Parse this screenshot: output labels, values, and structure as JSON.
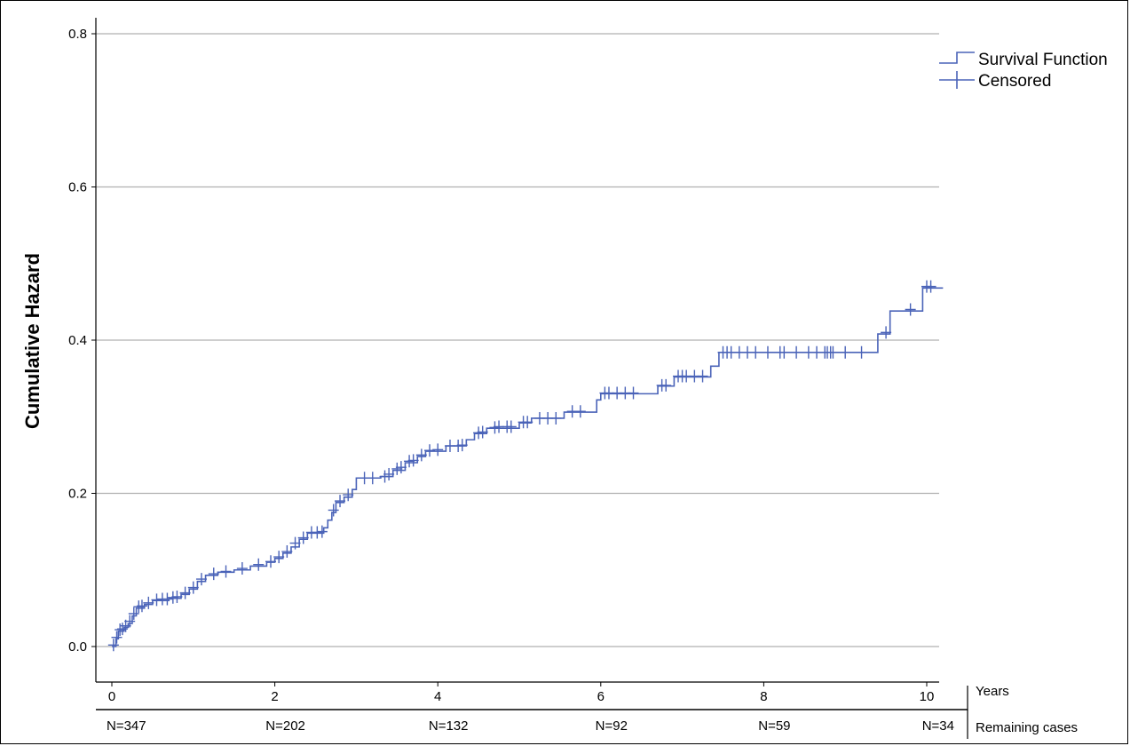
{
  "chart_data": {
    "type": "line",
    "title": "",
    "xlabel": "",
    "ylabel": "Cumulative Hazard",
    "xlim": [
      0,
      10.2
    ],
    "ylim": [
      -0.07,
      0.82
    ],
    "x_ticks": [
      0,
      2,
      4,
      6,
      8,
      10
    ],
    "y_ticks": [
      0.0,
      0.2,
      0.4,
      0.6,
      0.8
    ],
    "y_tick_labels": [
      "0.0",
      "0.2",
      "0.4",
      "0.6",
      "0.8"
    ],
    "x_tick_labels": [
      "0",
      "2",
      "4",
      "6",
      "8",
      "10"
    ],
    "grid": "horizontal",
    "legend_position": "top-right",
    "colors": {
      "line": "#4a63b8"
    },
    "legend": {
      "survival_label": "Survival Function",
      "censored_label": "Censored"
    },
    "x_axis_side_label": "Years",
    "risk_table_label": "Remaining cases",
    "risk_table": [
      {
        "x": 0,
        "label": "N=347"
      },
      {
        "x": 2,
        "label": "N=202"
      },
      {
        "x": 4,
        "label": "N=132"
      },
      {
        "x": 6,
        "label": "N=92"
      },
      {
        "x": 8,
        "label": "N=59"
      },
      {
        "x": 10,
        "label": "N=34"
      }
    ],
    "series": [
      {
        "name": "Survival Function",
        "step_points": [
          [
            0.0,
            0.0
          ],
          [
            0.05,
            0.01
          ],
          [
            0.08,
            0.02
          ],
          [
            0.15,
            0.025
          ],
          [
            0.2,
            0.03
          ],
          [
            0.25,
            0.04
          ],
          [
            0.3,
            0.05
          ],
          [
            0.4,
            0.055
          ],
          [
            0.5,
            0.06
          ],
          [
            0.7,
            0.063
          ],
          [
            0.85,
            0.068
          ],
          [
            0.95,
            0.075
          ],
          [
            1.05,
            0.085
          ],
          [
            1.15,
            0.093
          ],
          [
            1.3,
            0.097
          ],
          [
            1.5,
            0.1
          ],
          [
            1.7,
            0.105
          ],
          [
            1.9,
            0.11
          ],
          [
            2.0,
            0.115
          ],
          [
            2.1,
            0.122
          ],
          [
            2.2,
            0.13
          ],
          [
            2.3,
            0.14
          ],
          [
            2.4,
            0.148
          ],
          [
            2.6,
            0.155
          ],
          [
            2.65,
            0.165
          ],
          [
            2.7,
            0.175
          ],
          [
            2.75,
            0.188
          ],
          [
            2.85,
            0.195
          ],
          [
            2.95,
            0.205
          ],
          [
            3.0,
            0.22
          ],
          [
            3.3,
            0.222
          ],
          [
            3.45,
            0.23
          ],
          [
            3.6,
            0.24
          ],
          [
            3.75,
            0.248
          ],
          [
            3.85,
            0.255
          ],
          [
            4.1,
            0.262
          ],
          [
            4.35,
            0.27
          ],
          [
            4.45,
            0.278
          ],
          [
            4.6,
            0.285
          ],
          [
            5.0,
            0.292
          ],
          [
            5.15,
            0.298
          ],
          [
            5.55,
            0.306
          ],
          [
            5.95,
            0.322
          ],
          [
            6.0,
            0.33
          ],
          [
            6.7,
            0.34
          ],
          [
            6.9,
            0.352
          ],
          [
            7.35,
            0.366
          ],
          [
            7.45,
            0.384
          ],
          [
            9.4,
            0.408
          ],
          [
            9.55,
            0.438
          ],
          [
            9.95,
            0.468
          ],
          [
            10.2,
            0.468
          ]
        ]
      },
      {
        "name": "Censored",
        "censor_points": [
          [
            0.02,
            0.002
          ],
          [
            0.06,
            0.012
          ],
          [
            0.1,
            0.022
          ],
          [
            0.13,
            0.023
          ],
          [
            0.17,
            0.027
          ],
          [
            0.22,
            0.033
          ],
          [
            0.27,
            0.043
          ],
          [
            0.33,
            0.052
          ],
          [
            0.37,
            0.053
          ],
          [
            0.45,
            0.057
          ],
          [
            0.55,
            0.061
          ],
          [
            0.62,
            0.062
          ],
          [
            0.68,
            0.062
          ],
          [
            0.75,
            0.064
          ],
          [
            0.8,
            0.065
          ],
          [
            0.9,
            0.07
          ],
          [
            1.0,
            0.077
          ],
          [
            1.1,
            0.088
          ],
          [
            1.25,
            0.095
          ],
          [
            1.4,
            0.098
          ],
          [
            1.6,
            0.102
          ],
          [
            1.8,
            0.107
          ],
          [
            1.95,
            0.111
          ],
          [
            2.05,
            0.117
          ],
          [
            2.15,
            0.124
          ],
          [
            2.25,
            0.135
          ],
          [
            2.35,
            0.142
          ],
          [
            2.45,
            0.149
          ],
          [
            2.52,
            0.149
          ],
          [
            2.58,
            0.15
          ],
          [
            2.72,
            0.178
          ],
          [
            2.8,
            0.19
          ],
          [
            2.9,
            0.198
          ],
          [
            3.1,
            0.22
          ],
          [
            3.2,
            0.22
          ],
          [
            3.35,
            0.222
          ],
          [
            3.4,
            0.225
          ],
          [
            3.5,
            0.232
          ],
          [
            3.55,
            0.234
          ],
          [
            3.65,
            0.242
          ],
          [
            3.7,
            0.243
          ],
          [
            3.8,
            0.25
          ],
          [
            3.9,
            0.256
          ],
          [
            4.0,
            0.257
          ],
          [
            4.15,
            0.262
          ],
          [
            4.25,
            0.262
          ],
          [
            4.3,
            0.263
          ],
          [
            4.5,
            0.279
          ],
          [
            4.55,
            0.28
          ],
          [
            4.7,
            0.286
          ],
          [
            4.75,
            0.287
          ],
          [
            4.85,
            0.287
          ],
          [
            4.9,
            0.287
          ],
          [
            5.05,
            0.293
          ],
          [
            5.1,
            0.293
          ],
          [
            5.25,
            0.298
          ],
          [
            5.35,
            0.298
          ],
          [
            5.45,
            0.298
          ],
          [
            5.65,
            0.307
          ],
          [
            5.75,
            0.307
          ],
          [
            6.05,
            0.331
          ],
          [
            6.1,
            0.331
          ],
          [
            6.2,
            0.331
          ],
          [
            6.3,
            0.331
          ],
          [
            6.4,
            0.331
          ],
          [
            6.75,
            0.341
          ],
          [
            6.8,
            0.341
          ],
          [
            6.95,
            0.353
          ],
          [
            7.0,
            0.353
          ],
          [
            7.05,
            0.353
          ],
          [
            7.15,
            0.353
          ],
          [
            7.25,
            0.353
          ],
          [
            7.5,
            0.384
          ],
          [
            7.55,
            0.384
          ],
          [
            7.6,
            0.384
          ],
          [
            7.7,
            0.384
          ],
          [
            7.8,
            0.384
          ],
          [
            7.9,
            0.384
          ],
          [
            8.05,
            0.384
          ],
          [
            8.2,
            0.384
          ],
          [
            8.25,
            0.384
          ],
          [
            8.4,
            0.384
          ],
          [
            8.55,
            0.384
          ],
          [
            8.65,
            0.384
          ],
          [
            8.75,
            0.384
          ],
          [
            8.78,
            0.384
          ],
          [
            8.82,
            0.384
          ],
          [
            8.85,
            0.384
          ],
          [
            9.0,
            0.384
          ],
          [
            9.2,
            0.384
          ],
          [
            9.5,
            0.41
          ],
          [
            9.8,
            0.44
          ],
          [
            10.0,
            0.47
          ],
          [
            10.05,
            0.47
          ]
        ]
      }
    ]
  }
}
